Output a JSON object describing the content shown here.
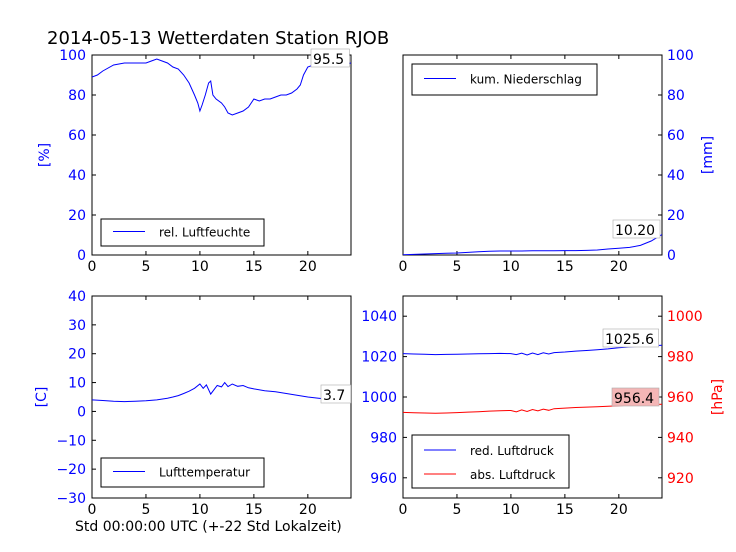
{
  "figure": {
    "title": "2014-05-13 Wetterdaten Station RJOB",
    "xlabel": "Std 00:00:00 UTC (+-22 Std Lokalzeit)"
  },
  "colors": {
    "blue": "#0000ff",
    "red": "#ff0000",
    "black": "#000000",
    "annotation_red_bg": "#f4b6b6"
  },
  "chart_data": [
    {
      "id": "humidity",
      "type": "line",
      "ylabel": "[%]",
      "xlim": [
        0,
        24
      ],
      "ylim": [
        0,
        100
      ],
      "xticks": [
        "0",
        "5",
        "10",
        "15",
        "20"
      ],
      "yticks": [
        "0",
        "20",
        "40",
        "60",
        "80",
        "100"
      ],
      "legend": [
        "rel. Luftfeuchte"
      ],
      "legend_position": "lower-left",
      "annotation": "95.5",
      "series": [
        {
          "name": "rel. Luftfeuchte",
          "color": "#0000ff",
          "x": [
            0,
            0.5,
            1,
            2,
            3,
            4,
            5,
            5.5,
            6,
            6.5,
            7,
            7.5,
            8,
            8.5,
            9,
            9.5,
            9.8,
            10,
            10.2,
            10.5,
            10.8,
            11,
            11.2,
            11.5,
            12,
            12.3,
            12.6,
            13,
            13.5,
            14,
            14.5,
            15,
            15.5,
            16,
            16.5,
            17,
            17.5,
            18,
            18.5,
            19,
            19.3,
            19.6,
            20,
            20.5,
            21,
            22,
            23,
            24
          ],
          "y": [
            89,
            90,
            92,
            95,
            96,
            96,
            96,
            97,
            98,
            97,
            96,
            94,
            93,
            90,
            86,
            80,
            76,
            72,
            75,
            80,
            86,
            87,
            80,
            78,
            76,
            74,
            71,
            70,
            71,
            72,
            74,
            78,
            77,
            78,
            78,
            79,
            80,
            80,
            81,
            83,
            85,
            90,
            94,
            95,
            95,
            95.5,
            95,
            96
          ]
        }
      ]
    },
    {
      "id": "precipitation",
      "type": "line",
      "ylabel": "[mm]",
      "xlim": [
        0,
        24
      ],
      "ylim": [
        0,
        100
      ],
      "xticks": [
        "0",
        "5",
        "10",
        "15",
        "20"
      ],
      "yticks": [
        "0",
        "20",
        "40",
        "60",
        "80",
        "100"
      ],
      "legend": [
        "kum. Niederschlag"
      ],
      "legend_position": "upper-left",
      "annotation": "10.20",
      "series": [
        {
          "name": "kum. Niederschlag",
          "color": "#0000ff",
          "x": [
            0,
            1,
            2,
            3,
            4,
            5,
            6,
            7,
            8,
            9,
            10,
            11,
            12,
            13,
            14,
            15,
            16,
            17,
            18,
            19,
            20,
            21,
            22,
            23,
            24
          ],
          "y": [
            0.1,
            0.3,
            0.5,
            0.7,
            0.9,
            1.0,
            1.3,
            1.6,
            1.9,
            2.0,
            2.0,
            2.0,
            2.1,
            2.1,
            2.1,
            2.2,
            2.2,
            2.3,
            2.5,
            3.0,
            3.4,
            3.8,
            4.8,
            7.0,
            10.2
          ]
        }
      ]
    },
    {
      "id": "temperature",
      "type": "line",
      "ylabel": "[C]",
      "xlim": [
        0,
        24
      ],
      "ylim": [
        -30,
        40
      ],
      "xticks": [
        "0",
        "5",
        "10",
        "15",
        "20"
      ],
      "yticks": [
        "−30",
        "−20",
        "−10",
        "0",
        "10",
        "20",
        "30",
        "40"
      ],
      "legend": [
        "Lufttemperatur"
      ],
      "legend_position": "lower-left",
      "annotation": "3.7",
      "series": [
        {
          "name": "Lufttemperatur",
          "color": "#0000ff",
          "x": [
            0,
            1,
            2,
            3,
            4,
            5,
            6,
            7,
            7.5,
            8,
            8.5,
            9,
            9.5,
            10,
            10.3,
            10.6,
            11,
            11.3,
            11.6,
            12,
            12.3,
            12.6,
            13,
            13.5,
            14,
            14.5,
            15,
            16,
            17,
            18,
            19,
            20,
            21,
            22,
            23,
            24
          ],
          "y": [
            4.0,
            3.8,
            3.5,
            3.4,
            3.5,
            3.7,
            4.0,
            4.6,
            5.0,
            5.5,
            6.2,
            7.0,
            8.0,
            9.5,
            8.0,
            9.2,
            6.0,
            7.5,
            9.0,
            8.5,
            10.0,
            8.6,
            9.5,
            8.7,
            9.0,
            8.2,
            7.8,
            7.2,
            6.8,
            6.2,
            5.6,
            5.0,
            4.6,
            4.2,
            3.9,
            3.7
          ]
        }
      ]
    },
    {
      "id": "pressure",
      "type": "line",
      "ylabel": "[hPa]",
      "xlim": [
        0,
        24
      ],
      "ylim": [
        950,
        1050
      ],
      "ylim_right": [
        910,
        1010
      ],
      "xticks": [
        "0",
        "5",
        "10",
        "15",
        "20"
      ],
      "yticks": [
        "960",
        "980",
        "1000",
        "1020",
        "1040"
      ],
      "yticks_right": [
        "920",
        "940",
        "960",
        "980",
        "1000"
      ],
      "legend": [
        "red. Luftdruck",
        "abs. Luftdruck"
      ],
      "legend_position": "lower-left",
      "annotations": [
        "1025.6",
        "956.4"
      ],
      "series": [
        {
          "name": "red. Luftdruck",
          "color": "#0000ff",
          "axis": "left",
          "x": [
            0,
            1,
            2,
            3,
            4,
            5,
            6,
            7,
            8,
            9,
            10,
            10.5,
            11,
            11.5,
            12,
            12.5,
            13,
            13.5,
            14,
            15,
            16,
            17,
            18,
            19,
            20,
            21,
            22,
            23,
            24
          ],
          "y": [
            1021.5,
            1021.3,
            1021.2,
            1021.0,
            1021.1,
            1021.2,
            1021.3,
            1021.4,
            1021.5,
            1021.6,
            1021.5,
            1021.0,
            1021.7,
            1020.8,
            1021.8,
            1021.0,
            1021.9,
            1021.3,
            1022.0,
            1022.3,
            1022.7,
            1023.0,
            1023.4,
            1023.8,
            1024.4,
            1024.8,
            1025.1,
            1025.4,
            1025.6
          ]
        },
        {
          "name": "abs. Luftdruck",
          "color": "#ff0000",
          "axis": "right",
          "x": [
            0,
            1,
            2,
            3,
            4,
            5,
            6,
            7,
            8,
            9,
            10,
            10.5,
            11,
            11.5,
            12,
            12.5,
            13,
            13.5,
            14,
            15,
            16,
            17,
            18,
            19,
            20,
            21,
            22,
            23,
            24
          ],
          "y": [
            952.4,
            952.2,
            952.1,
            952.0,
            952.1,
            952.3,
            952.5,
            952.7,
            953.0,
            953.2,
            953.3,
            952.6,
            953.6,
            952.8,
            953.8,
            953.1,
            954.0,
            953.4,
            954.2,
            954.5,
            954.8,
            955.0,
            955.2,
            955.4,
            955.7,
            955.9,
            956.1,
            956.3,
            956.4
          ]
        }
      ]
    }
  ]
}
